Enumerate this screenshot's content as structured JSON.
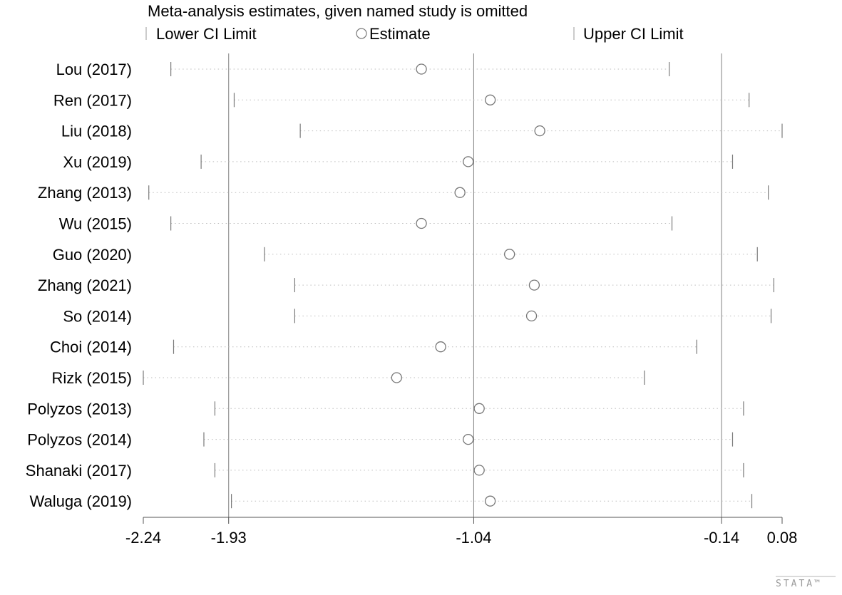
{
  "chart_data": {
    "type": "scatter",
    "title": "Meta-analysis estimates, given named study is omitted",
    "legend": {
      "placement": "top",
      "items": [
        "Lower CI Limit",
        "Estimate",
        "Upper CI Limit"
      ]
    },
    "x_ticks": [
      -2.24,
      -1.93,
      -1.04,
      -0.14,
      0.08
    ],
    "x_tick_labels": [
      "-2.24",
      "-1.93",
      "-1.04",
      "-0.14",
      "0.08"
    ],
    "reference_lines": [
      -1.93,
      -1.04,
      -0.14
    ],
    "xlim": [
      -2.24,
      0.08
    ],
    "grid": false,
    "studies": [
      {
        "name": "Lou (2017)",
        "lower": -2.14,
        "estimate": -1.23,
        "upper": -0.33
      },
      {
        "name": "Ren (2017)",
        "lower": -1.91,
        "estimate": -0.98,
        "upper": -0.04
      },
      {
        "name": "Liu (2018)",
        "lower": -1.67,
        "estimate": -0.8,
        "upper": 0.08
      },
      {
        "name": "Xu (2019)",
        "lower": -2.03,
        "estimate": -1.06,
        "upper": -0.1
      },
      {
        "name": "Zhang (2013)",
        "lower": -2.22,
        "estimate": -1.09,
        "upper": 0.03
      },
      {
        "name": "Wu (2015)",
        "lower": -2.14,
        "estimate": -1.23,
        "upper": -0.32
      },
      {
        "name": "Guo (2020)",
        "lower": -1.8,
        "estimate": -0.91,
        "upper": -0.01
      },
      {
        "name": "Zhang (2021)",
        "lower": -1.69,
        "estimate": -0.82,
        "upper": 0.05
      },
      {
        "name": "So (2014)",
        "lower": -1.69,
        "estimate": -0.83,
        "upper": 0.04
      },
      {
        "name": "Choi  (2014)",
        "lower": -2.13,
        "estimate": -1.16,
        "upper": -0.23
      },
      {
        "name": "Rizk (2015)",
        "lower": -2.24,
        "estimate": -1.32,
        "upper": -0.42
      },
      {
        "name": "Polyzos (2013)",
        "lower": -1.98,
        "estimate": -1.02,
        "upper": -0.06
      },
      {
        "name": "Polyzos (2014)",
        "lower": -2.02,
        "estimate": -1.06,
        "upper": -0.1
      },
      {
        "name": "Shanaki  (2017)",
        "lower": -1.98,
        "estimate": -1.02,
        "upper": -0.06
      },
      {
        "name": "Waluga (2019)",
        "lower": -1.92,
        "estimate": -0.98,
        "upper": -0.03
      }
    ]
  },
  "watermark": "STATA™"
}
